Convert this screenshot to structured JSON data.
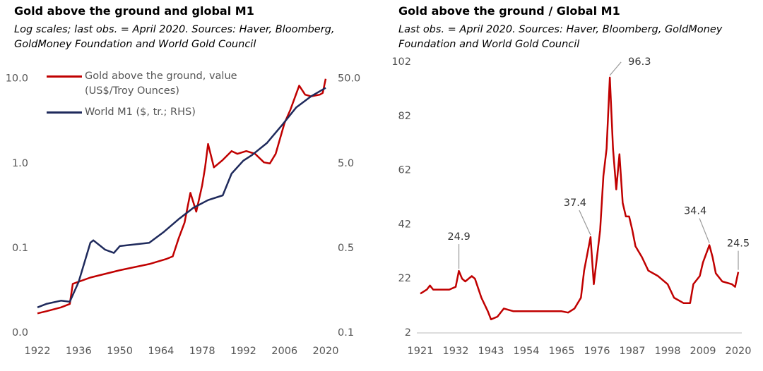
{
  "chart_data": [
    {
      "type": "line",
      "title": "Gold above the ground  and global M1",
      "subtitle": "Log scales; last obs. = April 2020. Sources: Haver, Bloomberg, GoldMoney Foundation and World Gold Council",
      "log_scale": true,
      "legend": "top-left",
      "xlim": [
        1922,
        2020
      ],
      "xticks": [
        1922,
        1936,
        1950,
        1964,
        1978,
        1992,
        2006,
        2020
      ],
      "ylim": [
        0.01,
        13
      ],
      "yticks": [
        {
          "value": 10,
          "label": "10.0"
        },
        {
          "value": 1,
          "label": "1.0"
        },
        0.1,
        {
          "value": 0.01,
          "label": "0.0"
        }
      ],
      "y2lim": [
        0.05,
        65
      ],
      "y2ticks": [
        {
          "value": 50,
          "label": "50.0"
        },
        {
          "value": 5,
          "label": "5.0"
        },
        0.5,
        {
          "value": 0.05,
          "label": "0.1"
        }
      ],
      "series": [
        {
          "name": "Gold above the ground, value (US$/Troy Ounces)",
          "color": "#c00000",
          "x": [
            1922,
            1925,
            1930,
            1933,
            1934,
            1940,
            1950,
            1960,
            1966,
            1968,
            1970,
            1972,
            1973,
            1974,
            1976,
            1978,
            1979,
            1980,
            1982,
            1985,
            1988,
            1990,
            1993,
            1996,
            1999,
            2001,
            2003,
            2006,
            2008,
            2011,
            2013,
            2015,
            2018,
            2019,
            2020
          ],
          "values": [
            0.017,
            0.018,
            0.02,
            0.022,
            0.038,
            0.045,
            0.055,
            0.065,
            0.075,
            0.08,
            0.13,
            0.2,
            0.3,
            0.45,
            0.27,
            0.55,
            0.9,
            1.7,
            0.9,
            1.1,
            1.4,
            1.3,
            1.4,
            1.3,
            1.03,
            1.0,
            1.3,
            3.0,
            4.3,
            8.3,
            6.5,
            6.2,
            6.5,
            6.8,
            10
          ]
        },
        {
          "name": "World M1 ($, tr.; RHS)",
          "color": "#1f2a5c",
          "axis": "y2",
          "x": [
            1922,
            1925,
            1930,
            1933,
            1936,
            1940,
            1941,
            1945,
            1948,
            1950,
            1960,
            1965,
            1970,
            1975,
            1980,
            1985,
            1988,
            1992,
            1995,
            2000,
            2005,
            2010,
            2015,
            2020
          ],
          "values": [
            0.1,
            0.11,
            0.12,
            0.117,
            0.2,
            0.58,
            0.62,
            0.48,
            0.44,
            0.53,
            0.58,
            0.78,
            1.1,
            1.5,
            1.85,
            2.1,
            3.8,
            5.4,
            6.3,
            8.7,
            14,
            23,
            31,
            39
          ]
        }
      ]
    },
    {
      "type": "line",
      "title": "Gold above the ground / Global M1",
      "subtitle": "Last obs. = April 2020. Sources: Haver, Bloomberg, GoldMoney Foundation and World Gold Council",
      "axis_line": true,
      "xlim": [
        1921,
        2020
      ],
      "xticks": [
        1921,
        1932,
        1943,
        1954,
        1965,
        1976,
        1987,
        1998,
        2009,
        2020
      ],
      "ylim": [
        2,
        102
      ],
      "yticks": [
        2,
        22,
        42,
        62,
        82,
        102
      ],
      "series": [
        {
          "color": "#c00000",
          "x": [
            1921,
            1923,
            1924,
            1925,
            1930,
            1932,
            1933,
            1934,
            1935,
            1937,
            1938,
            1940,
            1942,
            1943,
            1945,
            1947,
            1950,
            1955,
            1960,
            1965,
            1967,
            1969,
            1971,
            1972,
            1974,
            1975,
            1976,
            1977,
            1978,
            1979,
            1980,
            1981,
            1982,
            1983,
            1984,
            1985,
            1986,
            1987,
            1988,
            1990,
            1992,
            1995,
            1998,
            2000,
            2003,
            2005,
            2006,
            2008,
            2009,
            2011,
            2012,
            2013,
            2015,
            2018,
            2019,
            2020
          ],
          "values": [
            16.5,
            18,
            19.5,
            18,
            18,
            19,
            24.9,
            22,
            21,
            23,
            22,
            15,
            10,
            7,
            8,
            11,
            10,
            10,
            10,
            10,
            9.5,
            11,
            15,
            25,
            37.4,
            20,
            30,
            40,
            60,
            70,
            96.3,
            70,
            55,
            68,
            50,
            45,
            45,
            40,
            34,
            30,
            25,
            23,
            20,
            15,
            13,
            13,
            20,
            23,
            28,
            34.4,
            30,
            24,
            21,
            20,
            19,
            24.5
          ]
        }
      ],
      "annotations": [
        {
          "x": 1933,
          "value": 24.9
        },
        {
          "x": 1974,
          "value": 37.4
        },
        {
          "x": 1980,
          "value": 96.3
        },
        {
          "x": 2011,
          "value": 34.4
        },
        {
          "x": 2020,
          "value": 24.5
        }
      ]
    }
  ]
}
